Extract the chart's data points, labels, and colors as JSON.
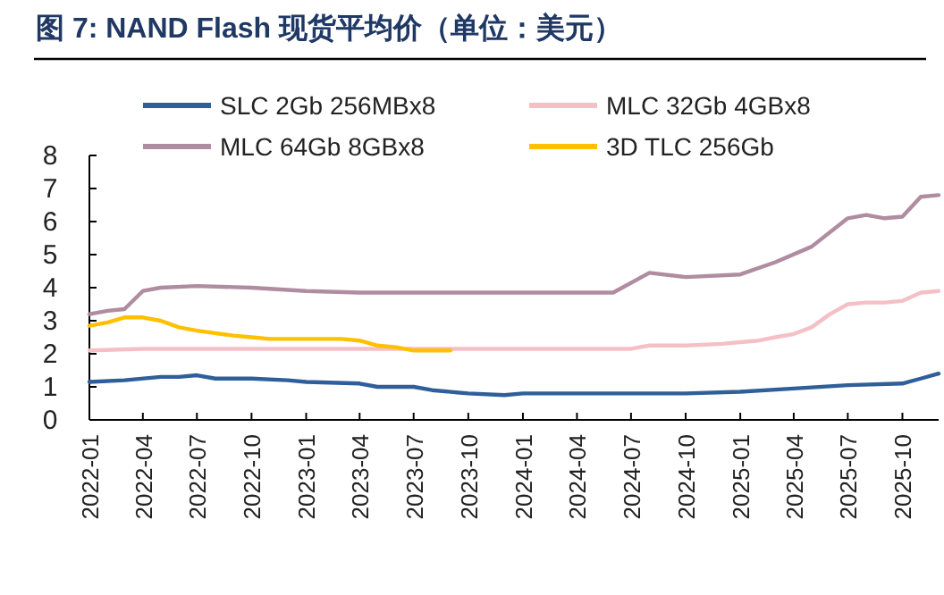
{
  "chart_data": {
    "type": "line",
    "title": "图 7:  NAND Flash 现货平均价（单位：美元）",
    "legend": "top",
    "grid": false,
    "xlim": [
      "2022-01",
      "2025-12"
    ],
    "xticks": [
      "2022-01",
      "2022-04",
      "2022-07",
      "2022-10",
      "2023-01",
      "2023-04",
      "2023-07",
      "2023-10",
      "2024-01",
      "2024-04",
      "2024-07",
      "2024-10",
      "2025-01",
      "2025-04",
      "2025-07",
      "2025-10"
    ],
    "ylim": [
      0,
      8
    ],
    "yticks": [
      0,
      1,
      2,
      3,
      4,
      5,
      6,
      7,
      8
    ],
    "series": [
      {
        "name": "SLC 2Gb 256MBx8",
        "color": "#2e5f9a",
        "x": [
          "2022-01",
          "2022-03",
          "2022-05",
          "2022-06",
          "2022-07",
          "2022-08",
          "2022-10",
          "2022-12",
          "2023-01",
          "2023-04",
          "2023-05",
          "2023-07",
          "2023-08",
          "2023-10",
          "2023-12",
          "2024-01",
          "2024-04",
          "2024-07",
          "2024-10",
          "2025-01",
          "2025-04",
          "2025-07",
          "2025-10",
          "2025-11",
          "2025-12"
        ],
        "values": [
          1.15,
          1.2,
          1.3,
          1.3,
          1.35,
          1.25,
          1.25,
          1.2,
          1.15,
          1.1,
          1.0,
          1.0,
          0.9,
          0.8,
          0.75,
          0.8,
          0.8,
          0.8,
          0.8,
          0.85,
          0.95,
          1.05,
          1.1,
          1.25,
          1.4
        ]
      },
      {
        "name": "MLC 32Gb 4GBx8",
        "color": "#f4c0c6",
        "x": [
          "2022-01",
          "2022-04",
          "2022-07",
          "2023-01",
          "2023-07",
          "2024-01",
          "2024-07",
          "2024-08",
          "2024-10",
          "2024-12",
          "2025-01",
          "2025-02",
          "2025-03",
          "2025-04",
          "2025-05",
          "2025-06",
          "2025-07",
          "2025-08",
          "2025-09",
          "2025-10",
          "2025-11",
          "2025-12"
        ],
        "values": [
          2.1,
          2.15,
          2.15,
          2.15,
          2.15,
          2.15,
          2.15,
          2.25,
          2.25,
          2.3,
          2.35,
          2.4,
          2.5,
          2.6,
          2.8,
          3.2,
          3.5,
          3.55,
          3.55,
          3.6,
          3.85,
          3.9
        ]
      },
      {
        "name": "MLC 64Gb 8GBx8",
        "color": "#b08ca0",
        "x": [
          "2022-01",
          "2022-02",
          "2022-03",
          "2022-04",
          "2022-05",
          "2022-07",
          "2022-10",
          "2023-01",
          "2023-04",
          "2023-07",
          "2024-01",
          "2024-06",
          "2024-08",
          "2024-10",
          "2025-01",
          "2025-03",
          "2025-05",
          "2025-07",
          "2025-08",
          "2025-09",
          "2025-10",
          "2025-11",
          "2025-12"
        ],
        "values": [
          3.2,
          3.3,
          3.35,
          3.9,
          4.0,
          4.05,
          4.0,
          3.9,
          3.85,
          3.85,
          3.85,
          3.85,
          4.45,
          4.32,
          4.4,
          4.77,
          5.24,
          6.1,
          6.2,
          6.1,
          6.15,
          6.75,
          6.8
        ]
      },
      {
        "name": "3D TLC 256Gb",
        "color": "#ffc000",
        "x": [
          "2022-01",
          "2022-02",
          "2022-03",
          "2022-04",
          "2022-05",
          "2022-06",
          "2022-07",
          "2022-09",
          "2022-10",
          "2022-11",
          "2023-01",
          "2023-03",
          "2023-04",
          "2023-05",
          "2023-06",
          "2023-07",
          "2023-08",
          "2023-09"
        ],
        "values": [
          2.85,
          2.95,
          3.1,
          3.1,
          3.0,
          2.8,
          2.7,
          2.55,
          2.5,
          2.45,
          2.45,
          2.45,
          2.4,
          2.25,
          2.2,
          2.1,
          2.1,
          2.1
        ]
      }
    ]
  }
}
